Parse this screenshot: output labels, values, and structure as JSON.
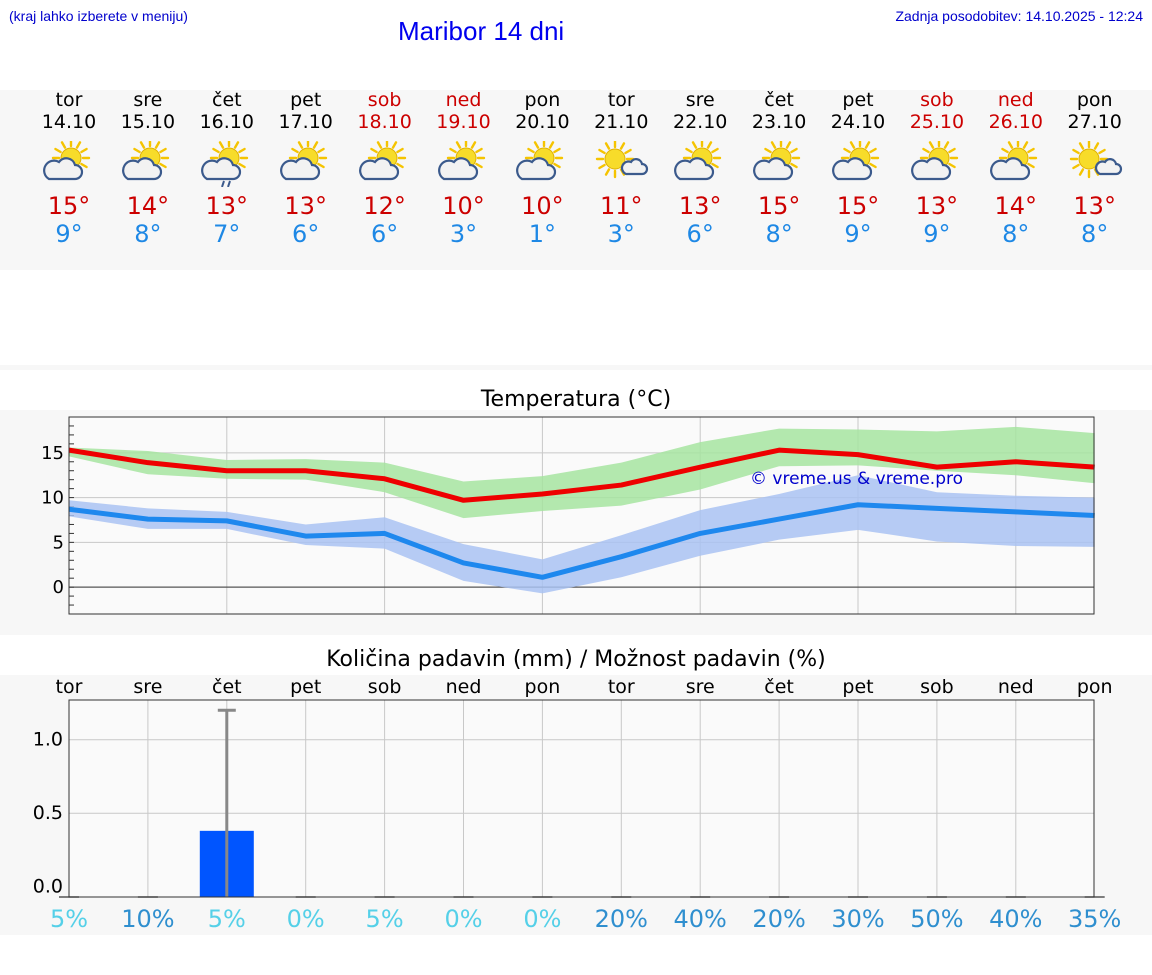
{
  "header": {
    "hint": "(kraj lahko izberete v meniju)",
    "title": "Maribor 14 dni",
    "updated": "Zadnja posodobitev: 14.10.2025 - 12:24"
  },
  "days": [
    {
      "name": "tor",
      "date": "14.10",
      "max": "15°",
      "min": "9°",
      "weekend": false,
      "icon": "sun-cloud-icon"
    },
    {
      "name": "sre",
      "date": "15.10",
      "max": "14°",
      "min": "8°",
      "weekend": false,
      "icon": "sun-cloud-icon"
    },
    {
      "name": "čet",
      "date": "16.10",
      "max": "13°",
      "min": "7°",
      "weekend": false,
      "icon": "sun-cloud-rain-icon"
    },
    {
      "name": "pet",
      "date": "17.10",
      "max": "13°",
      "min": "6°",
      "weekend": false,
      "icon": "sun-cloud-icon"
    },
    {
      "name": "sob",
      "date": "18.10",
      "max": "12°",
      "min": "6°",
      "weekend": true,
      "icon": "sun-cloud-icon"
    },
    {
      "name": "ned",
      "date": "19.10",
      "max": "10°",
      "min": "3°",
      "weekend": true,
      "icon": "sun-cloud-icon"
    },
    {
      "name": "pon",
      "date": "20.10",
      "max": "10°",
      "min": "1°",
      "weekend": false,
      "icon": "sun-cloud-icon"
    },
    {
      "name": "tor",
      "date": "21.10",
      "max": "11°",
      "min": "3°",
      "weekend": false,
      "icon": "sun-small-cloud-icon"
    },
    {
      "name": "sre",
      "date": "22.10",
      "max": "13°",
      "min": "6°",
      "weekend": false,
      "icon": "sun-cloud-icon"
    },
    {
      "name": "čet",
      "date": "23.10",
      "max": "15°",
      "min": "8°",
      "weekend": false,
      "icon": "sun-cloud-icon"
    },
    {
      "name": "pet",
      "date": "24.10",
      "max": "15°",
      "min": "9°",
      "weekend": false,
      "icon": "sun-cloud-icon"
    },
    {
      "name": "sob",
      "date": "25.10",
      "max": "13°",
      "min": "9°",
      "weekend": true,
      "icon": "sun-cloud-icon"
    },
    {
      "name": "ned",
      "date": "26.10",
      "max": "14°",
      "min": "8°",
      "weekend": true,
      "icon": "sun-cloud-icon"
    },
    {
      "name": "pon",
      "date": "27.10",
      "max": "13°",
      "min": "8°",
      "weekend": false,
      "icon": "sun-small-cloud-icon"
    }
  ],
  "chart_data": [
    {
      "type": "line",
      "title": "Temperatura (°C)",
      "watermark": "© vreme.us & vreme.pro",
      "x": [
        "14.10",
        "15.10",
        "16.10",
        "17.10",
        "18.10",
        "19.10",
        "20.10",
        "21.10",
        "22.10",
        "23.10",
        "24.10",
        "25.10",
        "26.10",
        "27.10"
      ],
      "ylim": [
        -3,
        19
      ],
      "yticks": [
        0,
        5,
        10,
        15
      ],
      "grid": true,
      "series": [
        {
          "values": [
            15.3,
            13.9,
            13.0,
            13.0,
            12.1,
            9.7,
            10.4,
            11.4,
            13.4,
            15.3,
            14.8,
            13.4,
            14.0,
            13.4
          ],
          "band_low": [
            14.6,
            12.6,
            12.1,
            12.0,
            10.6,
            7.7,
            8.5,
            9.1,
            10.9,
            13.5,
            13.6,
            13.0,
            12.5,
            11.6
          ],
          "band_high": [
            15.6,
            15.2,
            14.2,
            14.3,
            13.9,
            11.8,
            12.4,
            13.9,
            16.2,
            17.7,
            17.6,
            17.4,
            17.9,
            17.2
          ],
          "color": "#ee0000",
          "band_color": "#a6e4a0"
        },
        {
          "values": [
            8.7,
            7.6,
            7.4,
            5.7,
            6.0,
            2.7,
            1.1,
            3.4,
            6.0,
            7.6,
            9.2,
            8.8,
            8.4,
            8.0
          ],
          "band_low": [
            7.9,
            6.5,
            6.5,
            4.7,
            4.3,
            0.7,
            -0.7,
            1.1,
            3.5,
            5.3,
            6.4,
            5.1,
            4.6,
            4.5
          ],
          "band_high": [
            9.7,
            8.8,
            8.4,
            7.0,
            7.8,
            4.8,
            3.1,
            5.8,
            8.6,
            10.4,
            12.5,
            10.6,
            10.2,
            10.0
          ],
          "color": "#1e88ee",
          "band_color": "#a9c2f2"
        }
      ]
    },
    {
      "type": "bar",
      "title": "Količina padavin (mm) / Možnost padavin (%)",
      "categories": [
        "tor",
        "sre",
        "čet",
        "pet",
        "sob",
        "ned",
        "pon",
        "tor",
        "sre",
        "čet",
        "pet",
        "sob",
        "ned",
        "pon"
      ],
      "values": [
        0,
        0,
        0.38,
        0,
        0,
        0,
        0,
        0,
        0,
        0,
        0,
        0,
        0,
        0
      ],
      "error_high": [
        0,
        0,
        1.2,
        0,
        0,
        0,
        0,
        0,
        0,
        0,
        0,
        0,
        0,
        0
      ],
      "ylim": [
        -0.07,
        1.27
      ],
      "yticks": [
        "0.0",
        "0.5",
        "1.0"
      ],
      "bar_color": "#0055ff",
      "probability": [
        "5%",
        "10%",
        "5%",
        "0%",
        "5%",
        "0%",
        "0%",
        "20%",
        "40%",
        "20%",
        "30%",
        "50%",
        "40%",
        "35%"
      ],
      "grid": true
    }
  ]
}
